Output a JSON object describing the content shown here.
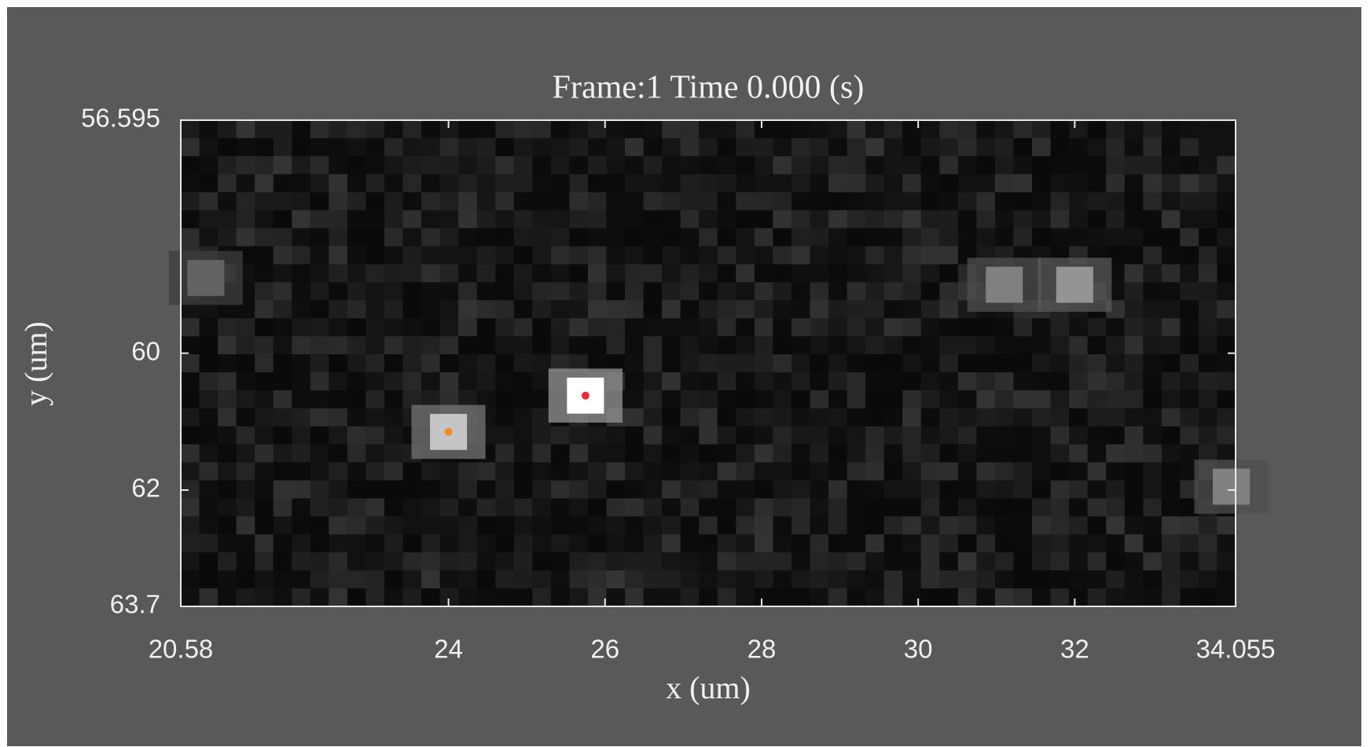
{
  "chart_data": {
    "type": "image",
    "title": "Frame:1 Time 0.000 (s)",
    "x_label": "x (um)",
    "y_label": "y (um)",
    "xlim": [
      20.58,
      34.055
    ],
    "xticks": [
      20.58,
      24,
      26,
      28,
      30,
      32,
      34.055
    ],
    "ylim": [
      63.7,
      56.595
    ],
    "yticks": [
      56.595,
      60,
      62,
      63.7
    ],
    "spots": {
      "x": [
        25.75,
        24.0,
        31.1,
        32.0,
        34.0,
        20.9
      ],
      "y": [
        60.62,
        61.15,
        59.0,
        59.0,
        61.95,
        58.9
      ],
      "brightness": [
        1.0,
        0.7,
        0.35,
        0.45,
        0.35,
        0.2
      ]
    },
    "markers": [
      {
        "color": "#e8303a",
        "x": 25.75,
        "y": 60.62
      },
      {
        "color": "#f08c28",
        "x": 24.0,
        "y": 61.15
      }
    ]
  }
}
